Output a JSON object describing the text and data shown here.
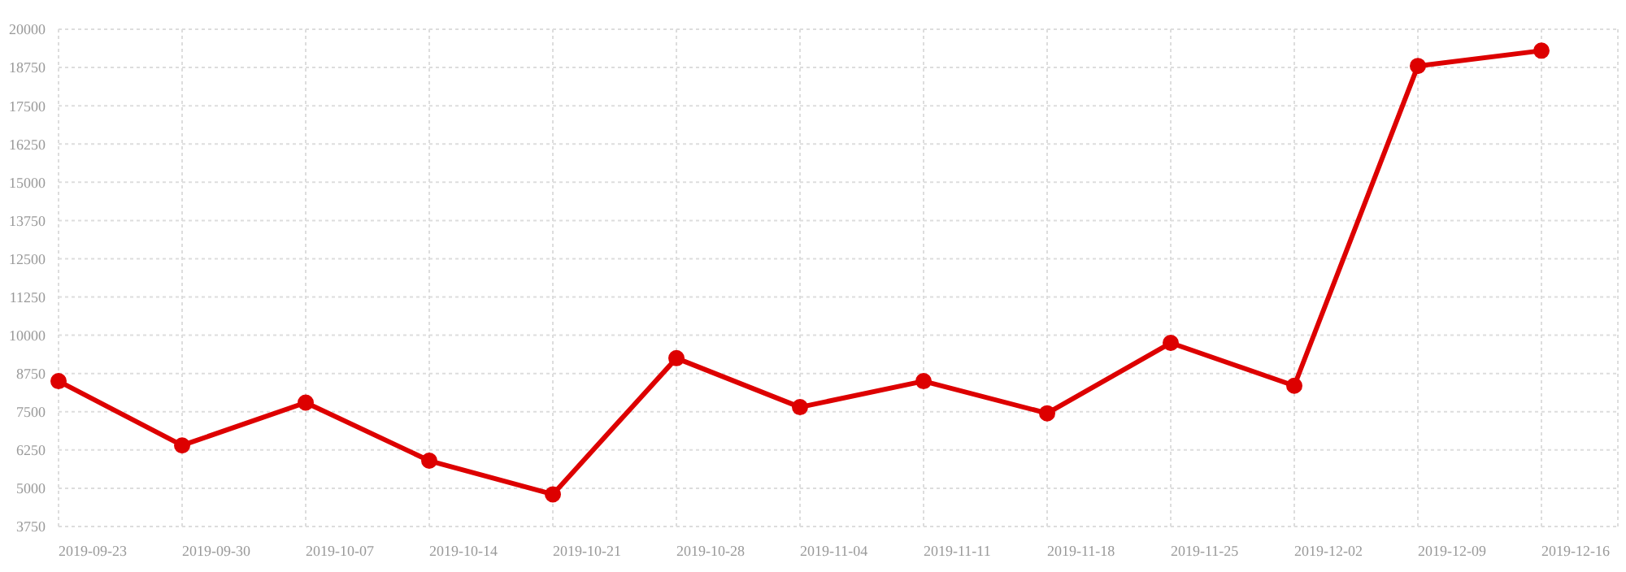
{
  "chart_data": {
    "type": "line",
    "categories": [
      "2019-09-23",
      "2019-09-30",
      "2019-10-07",
      "2019-10-14",
      "2019-10-21",
      "2019-10-28",
      "2019-11-04",
      "2019-11-11",
      "2019-11-18",
      "2019-11-25",
      "2019-12-02",
      "2019-12-09",
      "2019-12-16"
    ],
    "series": [
      {
        "color": "#dd0000",
        "values": [
          8500,
          6400,
          7800,
          5900,
          4800,
          9250,
          7650,
          8500,
          7450,
          9750,
          8350,
          18800,
          19300
        ]
      }
    ],
    "ylim": [
      3750,
      20000
    ],
    "yticks": [
      3750,
      5000,
      6250,
      7500,
      8750,
      10000,
      11250,
      12500,
      13750,
      15000,
      16250,
      17500,
      18750,
      20000
    ],
    "grid": true,
    "marker": "circle",
    "line_style": "solid",
    "legend": false
  }
}
